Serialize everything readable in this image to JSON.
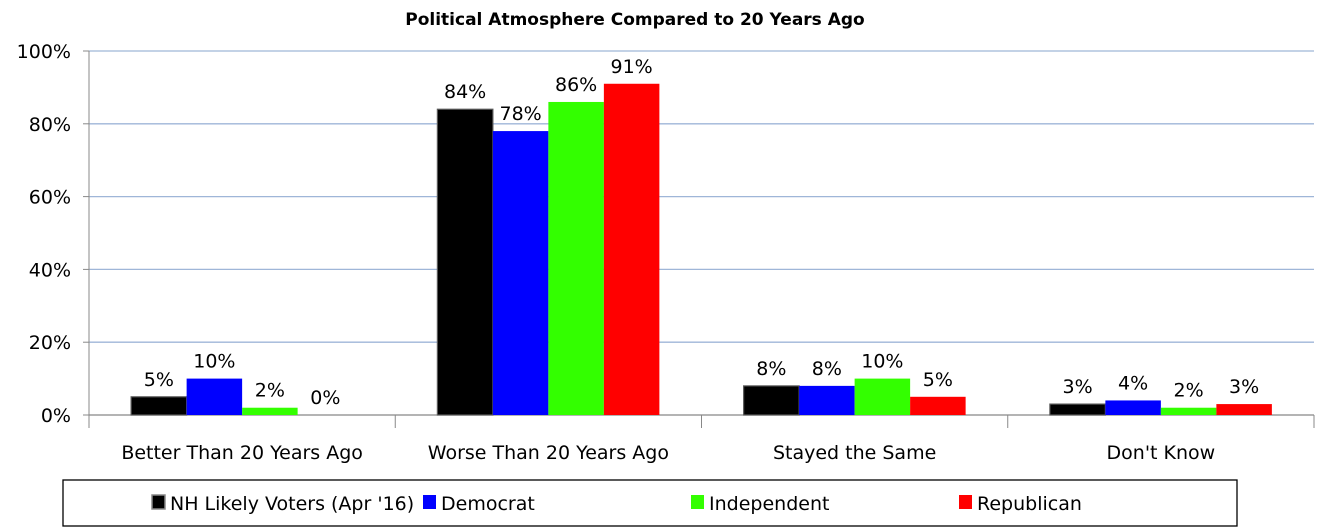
{
  "chart_data": {
    "type": "bar",
    "title": "Political Atmosphere Compared to 20 Years Ago",
    "categories": [
      "Better Than 20 Years Ago",
      "Worse Than 20 Years Ago",
      "Stayed the Same",
      "Don't Know"
    ],
    "series": [
      {
        "name": "NH Likely Voters (Apr '16)",
        "color": "#000000",
        "values": [
          5,
          84,
          8,
          3
        ],
        "labels": [
          "5%",
          "84%",
          "8%",
          "3%"
        ]
      },
      {
        "name": "Democrat",
        "color": "#0000FF",
        "values": [
          10,
          78,
          8,
          4
        ],
        "labels": [
          "10%",
          "78%",
          "8%",
          "4%"
        ]
      },
      {
        "name": "Independent",
        "color": "#33FF00",
        "values": [
          2,
          86,
          10,
          2
        ],
        "labels": [
          "2%",
          "86%",
          "10%",
          "2%"
        ]
      },
      {
        "name": "Republican",
        "color": "#FF0000",
        "values": [
          0,
          91,
          5,
          3
        ],
        "labels": [
          "0%",
          "91%",
          "5%",
          "3%"
        ]
      }
    ],
    "y_ticks": [
      0,
      20,
      40,
      60,
      80,
      100
    ],
    "y_tick_labels": [
      "0%",
      "20%",
      "40%",
      "60%",
      "80%",
      "100%"
    ],
    "ylim": [
      0,
      100
    ],
    "grid": true,
    "gridline_color": "#9FB6D8",
    "legend_position": "bottom"
  }
}
